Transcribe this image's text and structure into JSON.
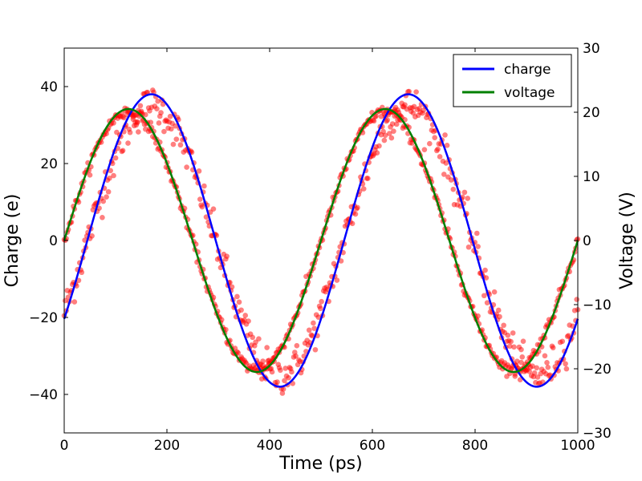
{
  "chart_data": {
    "type": "line",
    "xlabel": "Time (ps)",
    "ylabel": "Charge (e)",
    "y2label": "Voltage (V)",
    "xlim": [
      0,
      1000
    ],
    "ylim": [
      -50,
      50
    ],
    "y2lim": [
      -30,
      30
    ],
    "x_ticks": [
      0,
      200,
      400,
      600,
      800,
      1000
    ],
    "y_ticks": [
      -40,
      -20,
      0,
      20,
      40
    ],
    "y2_ticks": [
      -30,
      -20,
      -10,
      0,
      10,
      20,
      30
    ],
    "grid": false,
    "legend_position": "top-right",
    "series": [
      {
        "name": "charge",
        "axis": "left",
        "color": "#0000ff",
        "function": "sine",
        "amplitude": 38,
        "period": 500,
        "peak_at": 170
      },
      {
        "name": "voltage",
        "axis": "right",
        "color": "#008000",
        "function": "sine",
        "amplitude": 20.5,
        "period": 500,
        "peak_at": 125
      }
    ],
    "scatter": [
      {
        "name": "noisy samples",
        "color": "#ff0000",
        "alpha": 0.5,
        "x_start": 0,
        "x_end": 1000,
        "count": 500,
        "branches": [
          {
            "follows": "charge",
            "amplitude": 35,
            "noise": 2.5
          },
          {
            "follows": "voltage",
            "amplitude_left_units": 33.5,
            "noise": 0.8
          }
        ]
      }
    ],
    "tick_format": {
      "minus": "−"
    }
  }
}
